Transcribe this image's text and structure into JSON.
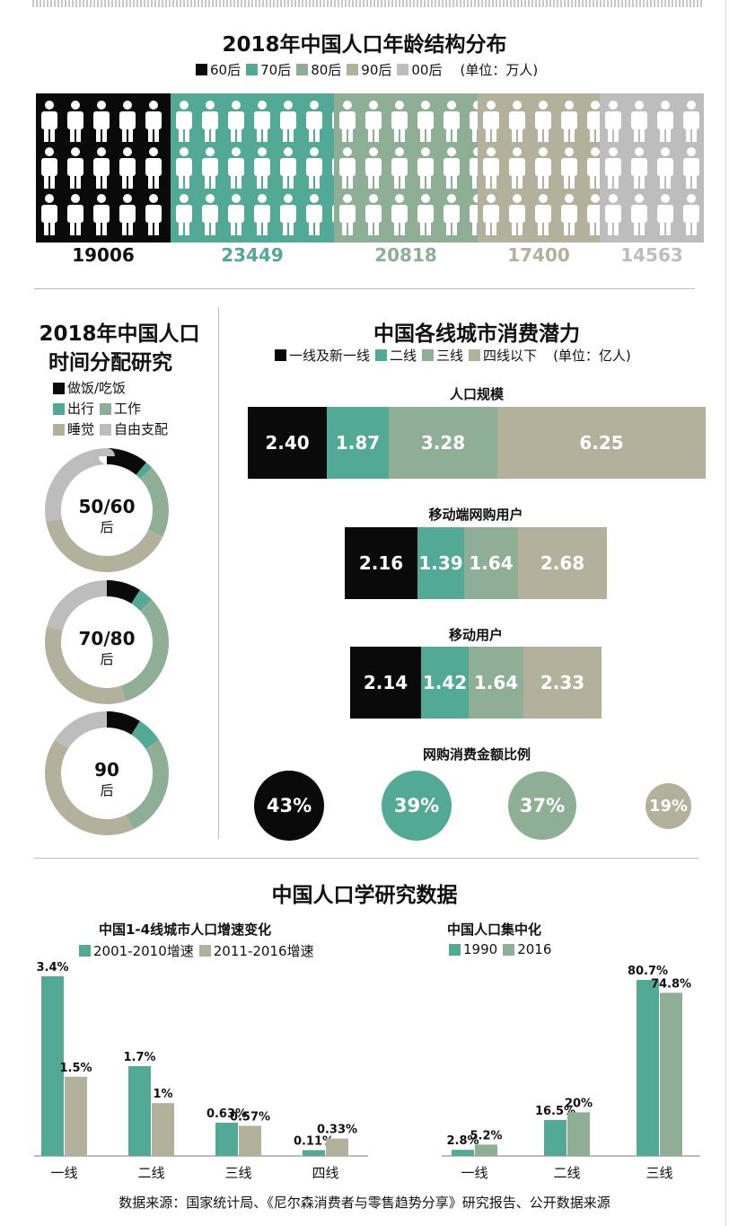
{
  "colors": {
    "black": "#0a0a0a",
    "teal": "#52a996",
    "sage": "#8fae96",
    "khaki": "#b3b09b",
    "grey": "#bdbdbd",
    "track": "#b1b09d"
  },
  "section1": {
    "title": "2018年中国人口年龄结构分布",
    "unit": "(单位：万人)",
    "legend": [
      "60后",
      "70后",
      "80后",
      "90后",
      "00后"
    ],
    "values": [
      "19006",
      "23449",
      "20818",
      "17400",
      "14563"
    ],
    "icon_name": "person-icon"
  },
  "chart_data": [
    {
      "type": "bar",
      "title": "2018年中国人口年龄结构分布",
      "unit": "(单位：万人)",
      "categories": [
        "60后",
        "70后",
        "80后",
        "90后",
        "00后"
      ],
      "values": [
        19006,
        23449,
        20818,
        17400,
        14563
      ]
    },
    {
      "type": "pie",
      "title": "2018年中国人口时间分配研究",
      "categories": [
        "做饭/吃饭",
        "出行",
        "工作",
        "睡觉",
        "自由支配"
      ],
      "series": [
        {
          "name": "50/60后",
          "values": [
            0.11,
            0.02,
            0.19,
            0.4,
            0.28
          ]
        },
        {
          "name": "70/80后",
          "values": [
            0.09,
            0.04,
            0.32,
            0.34,
            0.21
          ]
        },
        {
          "name": "90后",
          "values": [
            0.09,
            0.07,
            0.27,
            0.41,
            0.16
          ]
        }
      ]
    },
    {
      "type": "bar",
      "title": "中国各线城市消费潜力",
      "unit": "(单位：亿人)",
      "categories": [
        "人口规模",
        "移动端网购用户",
        "移动用户"
      ],
      "series": [
        {
          "name": "一线及新一线",
          "values": [
            2.4,
            2.16,
            2.14
          ]
        },
        {
          "name": "二线",
          "values": [
            1.87,
            1.39,
            1.42
          ]
        },
        {
          "name": "三线",
          "values": [
            3.28,
            1.64,
            1.64
          ]
        },
        {
          "name": "四线以下",
          "values": [
            6.25,
            2.68,
            2.33
          ]
        }
      ]
    },
    {
      "type": "bar",
      "title": "网购消费金额比例",
      "categories": [
        "一线及新一线",
        "二线",
        "三线",
        "四线以下"
      ],
      "values": [
        43,
        39,
        37,
        19
      ]
    },
    {
      "type": "bar",
      "title": "中国1-4线城市人口增速变化",
      "categories": [
        "一线",
        "二线",
        "三线",
        "四线"
      ],
      "series": [
        {
          "name": "2001-2010增速",
          "values": [
            3.4,
            1.7,
            0.63,
            0.11
          ]
        },
        {
          "name": "2011-2016增速",
          "values": [
            1.5,
            1.0,
            0.57,
            0.33
          ]
        }
      ]
    },
    {
      "type": "bar",
      "title": "中国人口集中化",
      "categories": [
        "一线",
        "二线",
        "三线"
      ],
      "series": [
        {
          "name": "1990",
          "values": [
            2.8,
            16.5,
            80.7
          ]
        },
        {
          "name": "2016",
          "values": [
            5.2,
            20.0,
            74.8
          ]
        }
      ]
    }
  ],
  "section2": {
    "title_line1": "2018年中国人口",
    "title_line2": "时间分配研究",
    "legend": [
      "做饭/吃饭",
      "出行",
      "工作",
      "睡觉",
      "自由支配"
    ],
    "donuts": [
      {
        "label1": "50/60",
        "label2": "后"
      },
      {
        "label1": "70/80",
        "label2": "后"
      },
      {
        "label1": "90",
        "label2": "后"
      }
    ]
  },
  "section3": {
    "title": "中国各线城市消费潜力",
    "legend": [
      "一线及新一线",
      "二线",
      "三线",
      "四线以下"
    ],
    "unit": "(单位：亿人)",
    "groups": [
      {
        "label": "人口规模",
        "values": [
          "2.40",
          "1.87",
          "3.28",
          "6.25"
        ]
      },
      {
        "label": "移动端网购用户",
        "values": [
          "2.16",
          "1.39",
          "1.64",
          "2.68"
        ]
      },
      {
        "label": "移动用户",
        "values": [
          "2.14",
          "1.42",
          "1.64",
          "2.33"
        ]
      }
    ],
    "circles_title": "网购消费金额比例",
    "circles": [
      "43%",
      "39%",
      "37%",
      "19%"
    ]
  },
  "section4": {
    "title": "中国人口学研究数据",
    "left": {
      "title": "中国1-4线城市人口增速变化",
      "legend": [
        "2001-2010增速",
        "2011-2016增速"
      ],
      "categories": [
        "一线",
        "二线",
        "三线",
        "四线"
      ],
      "labels_a": [
        "3.4%",
        "1.7%",
        "0.63%",
        "0.11%"
      ],
      "labels_b": [
        "1.5%",
        "1%",
        "0.57%",
        "0.33%"
      ]
    },
    "right": {
      "title": "中国人口集中化",
      "legend": [
        "1990",
        "2016"
      ],
      "categories": [
        "一线",
        "二线",
        "三线"
      ],
      "labels_a": [
        "2.8%",
        "16.5%",
        "80.7%"
      ],
      "labels_b": [
        "5.2%",
        "20%",
        "74.8%"
      ]
    }
  },
  "footer": "数据来源：国家统计局、《尼尔森消费者与零售趋势分享》研究报告、公开数据来源"
}
